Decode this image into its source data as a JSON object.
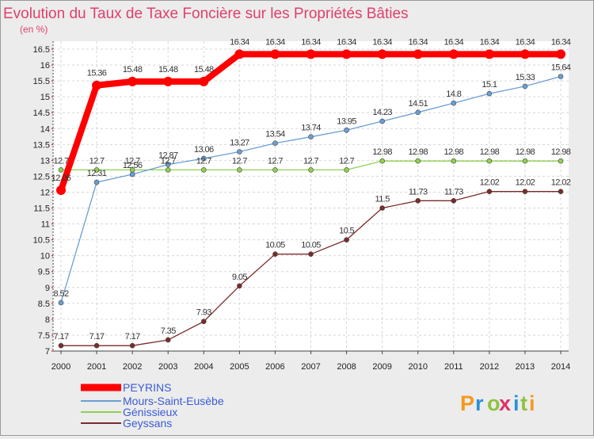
{
  "chart_data": {
    "type": "line",
    "title": "Evolution du Taux de Taxe Foncière sur les Propriétés Bâties",
    "unit_label": "(en %)",
    "x": [
      "2000",
      "2001",
      "2002",
      "2003",
      "2004",
      "2005",
      "2006",
      "2007",
      "2008",
      "2009",
      "2010",
      "2011",
      "2012",
      "2013",
      "2014"
    ],
    "ylim": [
      7,
      16.5
    ],
    "yticks": [
      "7",
      "7.5",
      "8",
      "8.5",
      "9",
      "9.5",
      "10",
      "10.5",
      "11",
      "11.5",
      "12",
      "12.5",
      "13",
      "13.5",
      "14",
      "14.5",
      "15",
      "15.5",
      "16",
      "16.5"
    ],
    "grid": true,
    "legend_position": "bottom-left",
    "series": [
      {
        "name": "PEYRINS",
        "color": "#ff0000",
        "values": [
          12.06,
          15.36,
          15.48,
          15.48,
          15.48,
          16.34,
          16.34,
          16.34,
          16.34,
          16.34,
          16.34,
          16.34,
          16.34,
          16.34,
          16.34
        ],
        "labels": [
          "12.06",
          "15.36",
          "15.48",
          "15.48",
          "15.48",
          "16.34",
          "16.34",
          "16.34",
          "16.34",
          "16.34",
          "16.34",
          "16.34",
          "16.34",
          "16.34",
          "16.34"
        ]
      },
      {
        "name": "Mours-Saint-Eusèbe",
        "color": "#6a9fd4",
        "values": [
          8.52,
          12.31,
          12.56,
          12.87,
          13.06,
          13.27,
          13.54,
          13.74,
          13.95,
          14.23,
          14.51,
          14.8,
          15.1,
          15.33,
          15.64
        ],
        "labels": [
          "8.52",
          "12.31",
          "12.56",
          "12.87",
          "13.06",
          "13.27",
          "13.54",
          "13.74",
          "13.95",
          "14.23",
          "14.51",
          "14.8",
          "15.1",
          "15.33",
          "15.64"
        ]
      },
      {
        "name": "Génissieux",
        "color": "#8fd14f",
        "values": [
          12.7,
          12.7,
          12.7,
          12.7,
          12.7,
          12.7,
          12.7,
          12.7,
          12.7,
          12.98,
          12.98,
          12.98,
          12.98,
          12.98,
          12.98
        ],
        "labels": [
          "12.7",
          "12.7",
          "12.7",
          "12.7",
          "12.7",
          "12.7",
          "12.7",
          "12.7",
          "12.7",
          "12.98",
          "12.98",
          "12.98",
          "12.98",
          "12.98",
          "12.98"
        ]
      },
      {
        "name": "Geyssans",
        "color": "#7a2b2b",
        "values": [
          7.17,
          7.17,
          7.17,
          7.35,
          7.93,
          9.05,
          10.05,
          10.05,
          10.5,
          11.5,
          11.73,
          11.73,
          12.02,
          12.02,
          12.02
        ],
        "labels": [
          "7.17",
          "7.17",
          "7.17",
          "7.35",
          "7.93",
          "9.05",
          "10.05",
          "10.05",
          "10.5",
          "11.5",
          "11.73",
          "11.73",
          "12.02",
          "12.02",
          "12.02"
        ]
      }
    ]
  },
  "branding": {
    "logo_text": "Proxiti",
    "logo_colors": [
      "#f39a1e",
      "#2c8fd6",
      "#8fc23f",
      "#e0306a",
      "#2c8fd6",
      "#8fc23f",
      "#f39a1e"
    ]
  }
}
